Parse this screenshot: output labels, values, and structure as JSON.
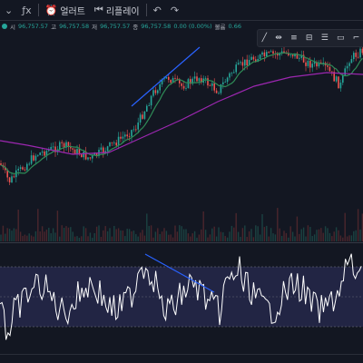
{
  "toolbar": {
    "items": [
      {
        "icon": "chevron-down-icon",
        "glyph": "⌄",
        "label": ""
      },
      {
        "icon": "indicators-icon",
        "glyph": "ƒx",
        "label": ""
      },
      {
        "icon": "alert-icon",
        "glyph": "⏰",
        "label": "얼러트"
      },
      {
        "icon": "replay-icon",
        "glyph": "⏮",
        "label": "리플레이"
      },
      {
        "icon": "undo-icon",
        "glyph": "↶",
        "label": ""
      },
      {
        "icon": "redo-icon",
        "glyph": "↷",
        "label": ""
      }
    ]
  },
  "ohlc": {
    "open_label": "시",
    "open": "96,757.57",
    "high_label": "고",
    "high": "96,757.58",
    "low_label": "저",
    "low": "96,757.57",
    "close_label": "종",
    "close": "96,757.58",
    "change": "0.00 (0.00%)",
    "volume_label": "볼륨",
    "volume": "0.66"
  },
  "drawing_tools": [
    {
      "icon": "trend-line-icon",
      "glyph": "╱"
    },
    {
      "icon": "ray-icon",
      "glyph": "⇹"
    },
    {
      "icon": "parallel-channel-icon",
      "glyph": "≡"
    },
    {
      "icon": "horizontal-line-icon",
      "glyph": "⊟"
    },
    {
      "icon": "fib-icon",
      "glyph": "☰"
    },
    {
      "icon": "rectangle-icon",
      "glyph": "▭"
    },
    {
      "icon": "more-icon",
      "glyph": "⌐"
    }
  ],
  "colors": {
    "background": "#131722",
    "up": "#26a69a",
    "down": "#ef5350",
    "ma_green": "#2e8b57",
    "ma_purple": "#9c27b0",
    "trendline": "#2962ff",
    "rsi_line": "#ffffff",
    "rsi_band": "#2a2c52"
  }
}
